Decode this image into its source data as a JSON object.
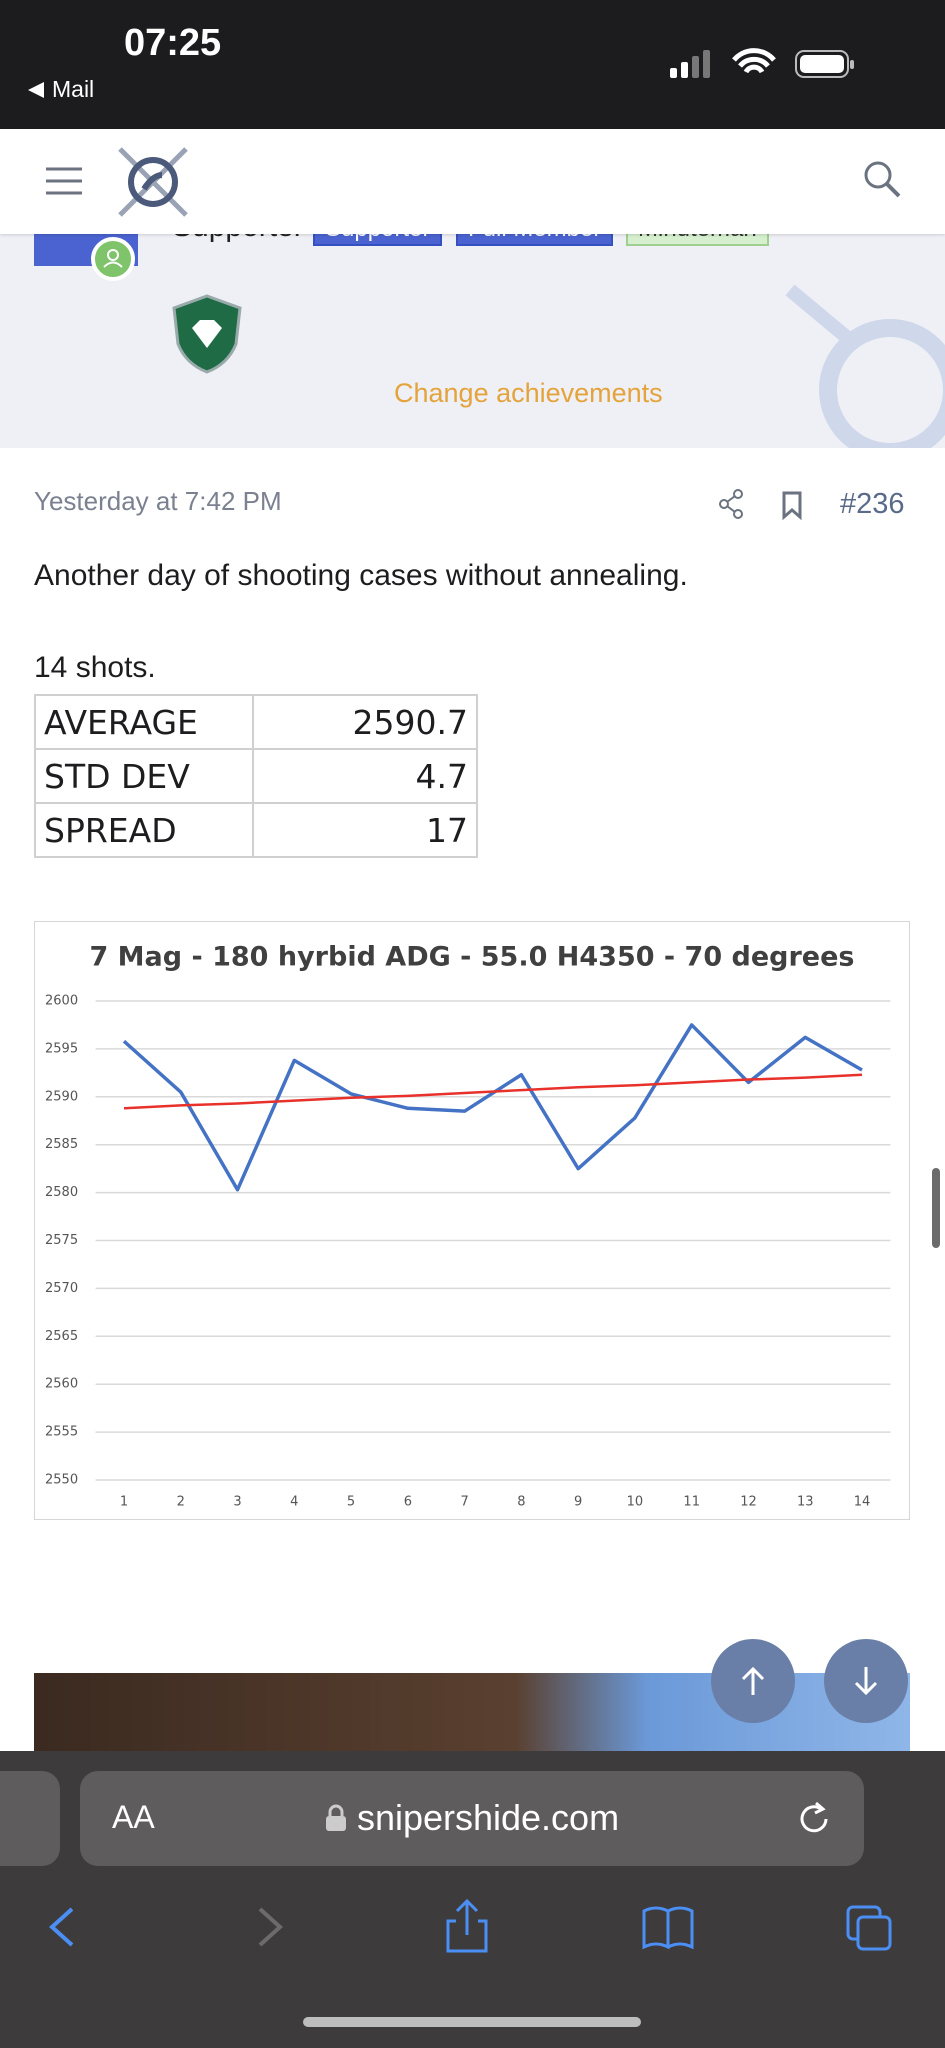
{
  "status_bar": {
    "time": "07:25",
    "back_label": "Mail"
  },
  "profile": {
    "title": "Supporter",
    "badges": [
      "Supporter",
      "Full Member",
      "Minuteman"
    ],
    "link": "Change achievements"
  },
  "post": {
    "timestamp": "Yesterday at 7:42 PM",
    "number": "#236",
    "text": "Another day of shooting cases without annealing.",
    "shots": "14 shots."
  },
  "table": {
    "rows": [
      [
        "AVERAGE",
        2590.7
      ],
      [
        "STD DEV",
        4.7
      ],
      [
        "SPREAD",
        17
      ]
    ]
  },
  "chart_data": {
    "type": "line",
    "title": "7 Mag - 180 hyrbid ADG - 55.0 H4350 - 70 degrees",
    "x": [
      1,
      2,
      3,
      4,
      5,
      6,
      7,
      8,
      9,
      10,
      11,
      12,
      13,
      14
    ],
    "xlim": [
      0.5,
      14.5
    ],
    "series": [
      {
        "color": "#4472c4",
        "values": [
          2595.8,
          2590.5,
          2580.3,
          2593.8,
          2590.3,
          2588.8,
          2588.5,
          2592.3,
          2582.5,
          2587.8,
          2597.5,
          2591.5,
          2596.2,
          2592.8
        ]
      },
      {
        "color": "#e8312a",
        "values": [
          2588.8,
          2589.1,
          2589.3,
          2589.6,
          2589.9,
          2590.1,
          2590.4,
          2590.7,
          2591.0,
          2591.2,
          2591.5,
          2591.8,
          2592.0,
          2592.3
        ]
      }
    ],
    "ylim": [
      2550,
      2600
    ],
    "yticks": [
      2550,
      2555,
      2560,
      2565,
      2570,
      2575,
      2580,
      2585,
      2590,
      2595,
      2600
    ],
    "grid": true
  },
  "browser": {
    "text_size": "AA",
    "url": "snipershide.com"
  }
}
